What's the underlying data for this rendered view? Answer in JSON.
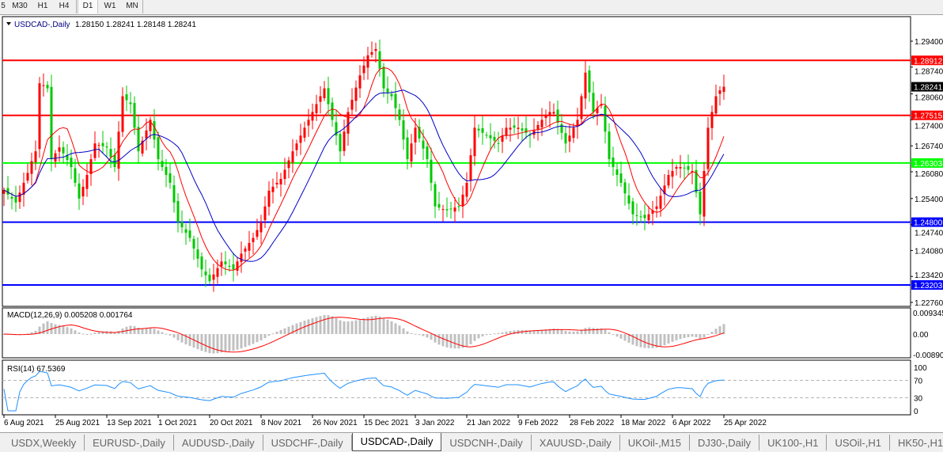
{
  "timeframes": {
    "items": [
      {
        "label": "5",
        "active": false
      },
      {
        "label": "M30",
        "active": false
      },
      {
        "label": "H1",
        "active": false
      },
      {
        "label": "H4",
        "active": false
      },
      {
        "label": "D1",
        "active": true
      },
      {
        "label": "W1",
        "active": false
      },
      {
        "label": "MN",
        "active": false
      }
    ]
  },
  "chart_header": {
    "symbol": "USDCAD-,Daily",
    "ohlc": "1.28150 1.28241 1.28148 1.28241"
  },
  "macd_header": "MACD(12,26,9) 0.005208 0.001764",
  "rsi_header": "RSI(14) 67.5369",
  "colors": {
    "bull_candle": "#ff0000",
    "bear_candle": "#00c800",
    "ma_fast": "#ff0000",
    "ma_slow": "#0000c8",
    "macd_histogram": "#c0c0c0",
    "macd_signal": "#ff0000",
    "rsi_line": "#1e90ff",
    "current_price_bg": "#000000"
  },
  "chart_data": [
    {
      "type": "candlestick",
      "title": "USDCAD-,Daily",
      "x_tick_labels": [
        "6 Aug 2021",
        "25 Aug 2021",
        "13 Sep 2021",
        "1 Oct 2021",
        "20 Oct 2021",
        "8 Nov 2021",
        "26 Nov 2021",
        "15 Dec 2021",
        "3 Jan 2022",
        "21 Jan 2022",
        "9 Feb 2022",
        "28 Feb 2022",
        "18 Mar 2022",
        "6 Apr 2022",
        "25 Apr 2022"
      ],
      "y_tick_labels": [
        "1.29400",
        "1.28740",
        "1.28060",
        "1.27400",
        "1.26740",
        "1.26080",
        "1.25400",
        "1.24740",
        "1.24080",
        "1.23420",
        "1.22760"
      ],
      "ylim": [
        1.2264,
        1.298
      ],
      "current_price": "1.28241",
      "horizontal_lines": [
        {
          "value": "1.28912",
          "color": "#ff0000"
        },
        {
          "value": "1.27515",
          "color": "#ff0000"
        },
        {
          "value": "1.26303",
          "color": "#00ff00"
        },
        {
          "value": "1.24800",
          "color": "#0000ff"
        },
        {
          "value": "1.23203",
          "color": "#0000ff"
        }
      ],
      "closes": [
        1.2562,
        1.255,
        1.254,
        1.253,
        1.2555,
        1.258,
        1.2605,
        1.2635,
        1.266,
        1.2833,
        1.2828,
        1.282,
        1.264,
        1.2655,
        1.267,
        1.2655,
        1.2638,
        1.262,
        1.258,
        1.254,
        1.257,
        1.26,
        1.264,
        1.268,
        1.2676,
        1.2673,
        1.267,
        1.2645,
        1.262,
        1.271,
        1.28,
        1.279,
        1.278,
        1.272,
        1.266,
        1.2687,
        1.2713,
        1.274,
        1.269,
        1.264,
        1.262,
        1.26,
        1.258,
        1.253,
        1.248,
        1.2467,
        1.2453,
        1.244,
        1.2413,
        1.2387,
        1.236,
        1.2345,
        1.233,
        1.2347,
        1.2363,
        1.238,
        1.2373,
        1.2367,
        1.236,
        1.238,
        1.24,
        1.2413,
        1.2427,
        1.244,
        1.246,
        1.248,
        1.252,
        1.256,
        1.257,
        1.258,
        1.259,
        1.2613,
        1.2637,
        1.266,
        1.268,
        1.27,
        1.272,
        1.274,
        1.276,
        1.278,
        1.28,
        1.282,
        1.278,
        1.274,
        1.27,
        1.266,
        1.271,
        1.276,
        1.2791,
        1.2822,
        1.2853,
        1.2878,
        1.2904,
        1.2912,
        1.292,
        1.287,
        1.282,
        1.281,
        1.28,
        1.277,
        1.274,
        1.269,
        1.264,
        1.268,
        1.272,
        1.2693,
        1.2667,
        1.264,
        1.258,
        1.252,
        1.2517,
        1.2513,
        1.251,
        1.2513,
        1.2517,
        1.252,
        1.255,
        1.258,
        1.265,
        1.272,
        1.2713,
        1.2707,
        1.27,
        1.2693,
        1.2687,
        1.268,
        1.27,
        1.272,
        1.272,
        1.272,
        1.272,
        1.2713,
        1.2707,
        1.27,
        1.2713,
        1.2727,
        1.274,
        1.275,
        1.276,
        1.276,
        1.2733,
        1.2707,
        1.268,
        1.27,
        1.272,
        1.274,
        1.28,
        1.286,
        1.281,
        1.276,
        1.277,
        1.278,
        1.271,
        1.264,
        1.262,
        1.26,
        1.258,
        1.2553,
        1.2527,
        1.25,
        1.2497,
        1.2493,
        1.249,
        1.25,
        1.251,
        1.252,
        1.2547,
        1.2573,
        1.26,
        1.261,
        1.262,
        1.262,
        1.2617,
        1.2613,
        1.261,
        1.2555,
        1.25,
        1.261,
        1.272,
        1.276,
        1.28,
        1.2815,
        1.28241
      ]
    },
    {
      "type": "bar",
      "title": "MACD(12,26,9) 0.005208 0.001764",
      "y_tick_labels": [
        "0.009345",
        "0.00",
        "-0.00890"
      ],
      "ylim": [
        -0.0089,
        0.009345
      ]
    },
    {
      "type": "line",
      "title": "RSI(14) 67.5369",
      "y_tick_labels": [
        "100",
        "70",
        "30",
        "0"
      ],
      "ylim": [
        0,
        100
      ],
      "levels": [
        70,
        30
      ]
    }
  ],
  "tabs": [
    {
      "label": "USDX,Weekly",
      "active": false
    },
    {
      "label": "EURUSD-,Daily",
      "active": false
    },
    {
      "label": "AUDUSD-,Daily",
      "active": false
    },
    {
      "label": "USDCHF-,Daily",
      "active": false
    },
    {
      "label": "USDCAD-,Daily",
      "active": true
    },
    {
      "label": "USDCNH-,Daily",
      "active": false
    },
    {
      "label": "XAUUSD-,Daily",
      "active": false
    },
    {
      "label": "UKOil-,M15",
      "active": false
    },
    {
      "label": "DJ30-,Daily",
      "active": false
    },
    {
      "label": "UK100-,H1",
      "active": false
    },
    {
      "label": "USOil-,H1",
      "active": false
    },
    {
      "label": "HK50-,H1",
      "active": false
    }
  ]
}
